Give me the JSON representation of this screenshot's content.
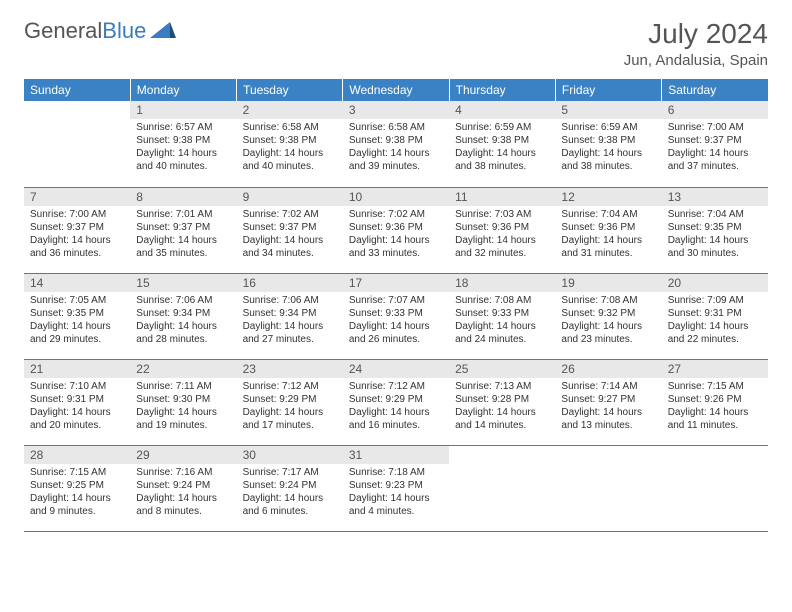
{
  "brand": {
    "part1": "General",
    "part2": "Blue"
  },
  "title": "July 2024",
  "location": "Jun, Andalusia, Spain",
  "colors": {
    "header_bg": "#3b82c4",
    "header_text": "#ffffff",
    "daynum_bg": "#e8e8e8",
    "border": "#3b82c4",
    "logo_blue": "#3b7bbf",
    "text": "#333333"
  },
  "weekdays": [
    "Sunday",
    "Monday",
    "Tuesday",
    "Wednesday",
    "Thursday",
    "Friday",
    "Saturday"
  ],
  "weeks": [
    [
      null,
      {
        "n": "1",
        "sr": "Sunrise: 6:57 AM",
        "ss": "Sunset: 9:38 PM",
        "dl1": "Daylight: 14 hours",
        "dl2": "and 40 minutes."
      },
      {
        "n": "2",
        "sr": "Sunrise: 6:58 AM",
        "ss": "Sunset: 9:38 PM",
        "dl1": "Daylight: 14 hours",
        "dl2": "and 40 minutes."
      },
      {
        "n": "3",
        "sr": "Sunrise: 6:58 AM",
        "ss": "Sunset: 9:38 PM",
        "dl1": "Daylight: 14 hours",
        "dl2": "and 39 minutes."
      },
      {
        "n": "4",
        "sr": "Sunrise: 6:59 AM",
        "ss": "Sunset: 9:38 PM",
        "dl1": "Daylight: 14 hours",
        "dl2": "and 38 minutes."
      },
      {
        "n": "5",
        "sr": "Sunrise: 6:59 AM",
        "ss": "Sunset: 9:38 PM",
        "dl1": "Daylight: 14 hours",
        "dl2": "and 38 minutes."
      },
      {
        "n": "6",
        "sr": "Sunrise: 7:00 AM",
        "ss": "Sunset: 9:37 PM",
        "dl1": "Daylight: 14 hours",
        "dl2": "and 37 minutes."
      }
    ],
    [
      {
        "n": "7",
        "sr": "Sunrise: 7:00 AM",
        "ss": "Sunset: 9:37 PM",
        "dl1": "Daylight: 14 hours",
        "dl2": "and 36 minutes."
      },
      {
        "n": "8",
        "sr": "Sunrise: 7:01 AM",
        "ss": "Sunset: 9:37 PM",
        "dl1": "Daylight: 14 hours",
        "dl2": "and 35 minutes."
      },
      {
        "n": "9",
        "sr": "Sunrise: 7:02 AM",
        "ss": "Sunset: 9:37 PM",
        "dl1": "Daylight: 14 hours",
        "dl2": "and 34 minutes."
      },
      {
        "n": "10",
        "sr": "Sunrise: 7:02 AM",
        "ss": "Sunset: 9:36 PM",
        "dl1": "Daylight: 14 hours",
        "dl2": "and 33 minutes."
      },
      {
        "n": "11",
        "sr": "Sunrise: 7:03 AM",
        "ss": "Sunset: 9:36 PM",
        "dl1": "Daylight: 14 hours",
        "dl2": "and 32 minutes."
      },
      {
        "n": "12",
        "sr": "Sunrise: 7:04 AM",
        "ss": "Sunset: 9:36 PM",
        "dl1": "Daylight: 14 hours",
        "dl2": "and 31 minutes."
      },
      {
        "n": "13",
        "sr": "Sunrise: 7:04 AM",
        "ss": "Sunset: 9:35 PM",
        "dl1": "Daylight: 14 hours",
        "dl2": "and 30 minutes."
      }
    ],
    [
      {
        "n": "14",
        "sr": "Sunrise: 7:05 AM",
        "ss": "Sunset: 9:35 PM",
        "dl1": "Daylight: 14 hours",
        "dl2": "and 29 minutes."
      },
      {
        "n": "15",
        "sr": "Sunrise: 7:06 AM",
        "ss": "Sunset: 9:34 PM",
        "dl1": "Daylight: 14 hours",
        "dl2": "and 28 minutes."
      },
      {
        "n": "16",
        "sr": "Sunrise: 7:06 AM",
        "ss": "Sunset: 9:34 PM",
        "dl1": "Daylight: 14 hours",
        "dl2": "and 27 minutes."
      },
      {
        "n": "17",
        "sr": "Sunrise: 7:07 AM",
        "ss": "Sunset: 9:33 PM",
        "dl1": "Daylight: 14 hours",
        "dl2": "and 26 minutes."
      },
      {
        "n": "18",
        "sr": "Sunrise: 7:08 AM",
        "ss": "Sunset: 9:33 PM",
        "dl1": "Daylight: 14 hours",
        "dl2": "and 24 minutes."
      },
      {
        "n": "19",
        "sr": "Sunrise: 7:08 AM",
        "ss": "Sunset: 9:32 PM",
        "dl1": "Daylight: 14 hours",
        "dl2": "and 23 minutes."
      },
      {
        "n": "20",
        "sr": "Sunrise: 7:09 AM",
        "ss": "Sunset: 9:31 PM",
        "dl1": "Daylight: 14 hours",
        "dl2": "and 22 minutes."
      }
    ],
    [
      {
        "n": "21",
        "sr": "Sunrise: 7:10 AM",
        "ss": "Sunset: 9:31 PM",
        "dl1": "Daylight: 14 hours",
        "dl2": "and 20 minutes."
      },
      {
        "n": "22",
        "sr": "Sunrise: 7:11 AM",
        "ss": "Sunset: 9:30 PM",
        "dl1": "Daylight: 14 hours",
        "dl2": "and 19 minutes."
      },
      {
        "n": "23",
        "sr": "Sunrise: 7:12 AM",
        "ss": "Sunset: 9:29 PM",
        "dl1": "Daylight: 14 hours",
        "dl2": "and 17 minutes."
      },
      {
        "n": "24",
        "sr": "Sunrise: 7:12 AM",
        "ss": "Sunset: 9:29 PM",
        "dl1": "Daylight: 14 hours",
        "dl2": "and 16 minutes."
      },
      {
        "n": "25",
        "sr": "Sunrise: 7:13 AM",
        "ss": "Sunset: 9:28 PM",
        "dl1": "Daylight: 14 hours",
        "dl2": "and 14 minutes."
      },
      {
        "n": "26",
        "sr": "Sunrise: 7:14 AM",
        "ss": "Sunset: 9:27 PM",
        "dl1": "Daylight: 14 hours",
        "dl2": "and 13 minutes."
      },
      {
        "n": "27",
        "sr": "Sunrise: 7:15 AM",
        "ss": "Sunset: 9:26 PM",
        "dl1": "Daylight: 14 hours",
        "dl2": "and 11 minutes."
      }
    ],
    [
      {
        "n": "28",
        "sr": "Sunrise: 7:15 AM",
        "ss": "Sunset: 9:25 PM",
        "dl1": "Daylight: 14 hours",
        "dl2": "and 9 minutes."
      },
      {
        "n": "29",
        "sr": "Sunrise: 7:16 AM",
        "ss": "Sunset: 9:24 PM",
        "dl1": "Daylight: 14 hours",
        "dl2": "and 8 minutes."
      },
      {
        "n": "30",
        "sr": "Sunrise: 7:17 AM",
        "ss": "Sunset: 9:24 PM",
        "dl1": "Daylight: 14 hours",
        "dl2": "and 6 minutes."
      },
      {
        "n": "31",
        "sr": "Sunrise: 7:18 AM",
        "ss": "Sunset: 9:23 PM",
        "dl1": "Daylight: 14 hours",
        "dl2": "and 4 minutes."
      },
      null,
      null,
      null
    ]
  ]
}
